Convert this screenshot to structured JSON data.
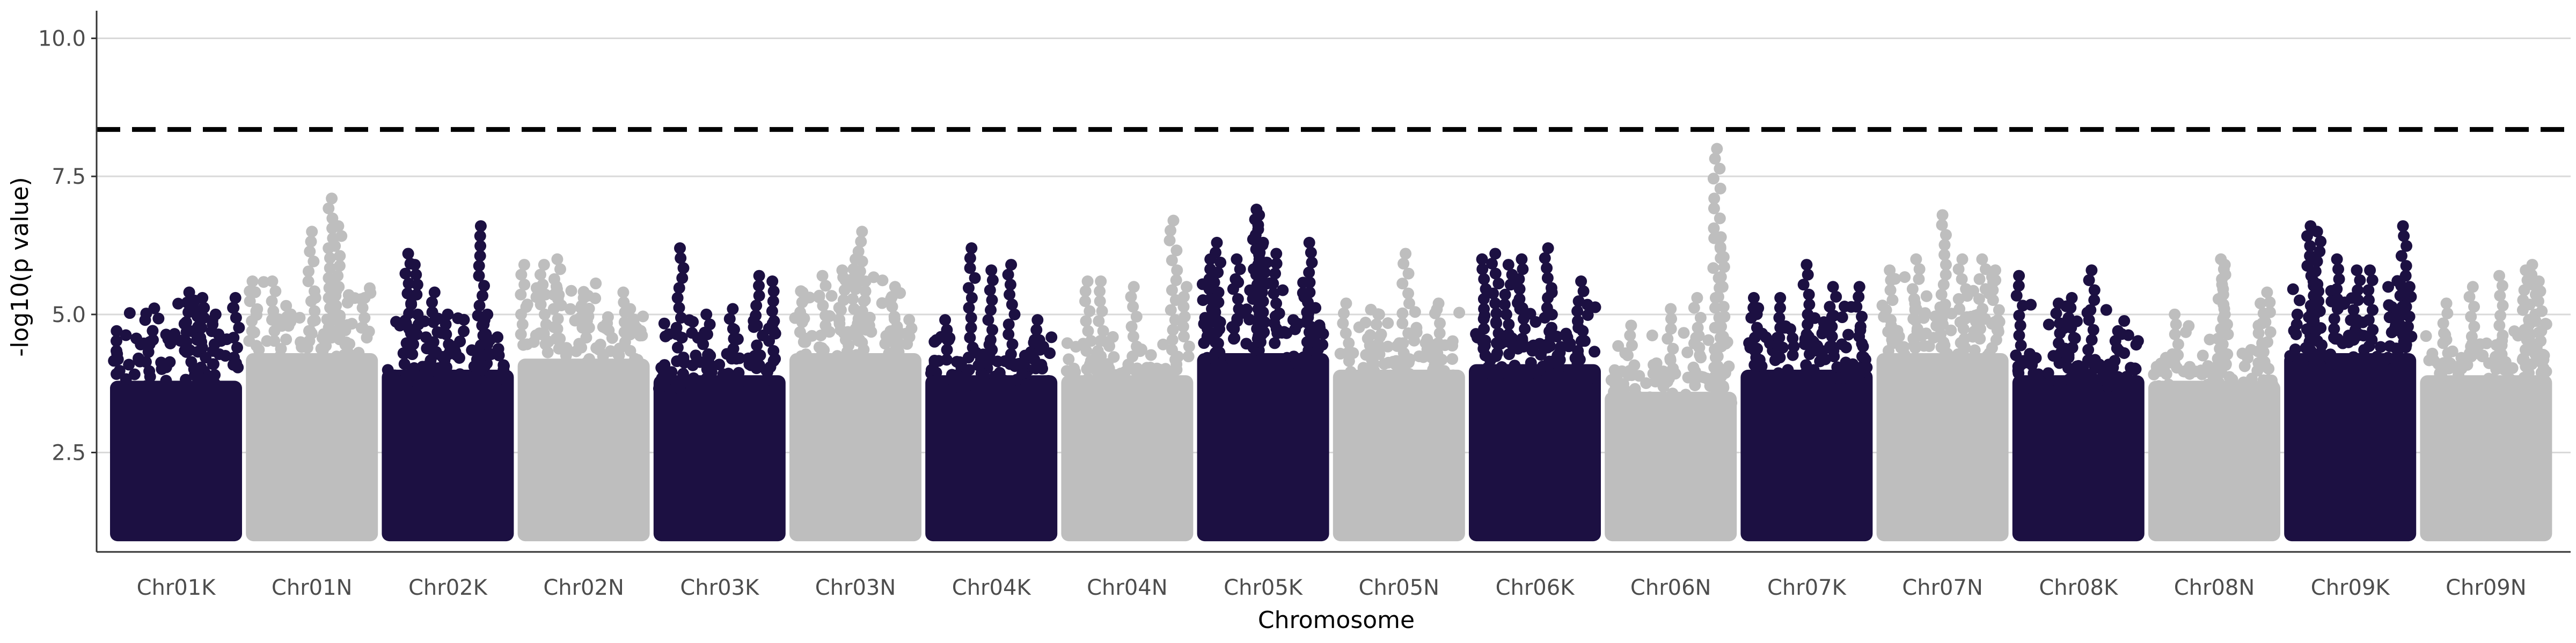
{
  "chart_data": {
    "type": "scatter",
    "title": "",
    "xlabel": "Chromosome",
    "ylabel": "-log10(p value)",
    "ylim": [
      0.7,
      10.5
    ],
    "yticks": [
      "2.5",
      "5.0",
      "7.5",
      "10.0"
    ],
    "ytick_values": [
      2.5,
      5.0,
      7.5,
      10.0
    ],
    "grid": "horizontal major",
    "legend": "none",
    "threshold": 8.35,
    "threshold_style": "dashed",
    "colors": {
      "odd": "#1c1042",
      "even": "#bebebe",
      "threshold": "#000000",
      "grid": "#d9d9d9"
    },
    "chromosomes": [
      "Chr01K",
      "Chr01N",
      "Chr02K",
      "Chr02N",
      "Chr03K",
      "Chr03N",
      "Chr04K",
      "Chr04N",
      "Chr05K",
      "Chr05N",
      "Chr06K",
      "Chr06N",
      "Chr07K",
      "Chr07N",
      "Chr08K",
      "Chr08N",
      "Chr09K",
      "Chr09N"
    ],
    "series": [
      {
        "chromosome": "Chr01K",
        "band_top": 3.8,
        "spread": [
          4.7,
          5.3
        ],
        "points": [
          [
            0.05,
            4.7
          ],
          [
            0.3,
            4.5
          ],
          [
            0.6,
            5.4
          ],
          [
            0.7,
            5.3
          ],
          [
            0.8,
            5.0
          ],
          [
            0.95,
            5.3
          ]
        ]
      },
      {
        "chromosome": "Chr01N",
        "band_top": 4.3,
        "spread": [
          5.0,
          5.6
        ],
        "points": [
          [
            0.05,
            5.6
          ],
          [
            0.2,
            5.6
          ],
          [
            0.5,
            6.5
          ],
          [
            0.65,
            7.1
          ],
          [
            0.7,
            6.6
          ],
          [
            0.9,
            5.3
          ]
        ]
      },
      {
        "chromosome": "Chr02K",
        "band_top": 4.0,
        "spread": [
          4.4,
          5.0
        ],
        "points": [
          [
            0.2,
            6.1
          ],
          [
            0.25,
            5.9
          ],
          [
            0.4,
            5.4
          ],
          [
            0.5,
            5.0
          ],
          [
            0.75,
            6.6
          ],
          [
            0.8,
            5.0
          ]
        ]
      },
      {
        "chromosome": "Chr02N",
        "band_top": 4.2,
        "spread": [
          5.0,
          5.6
        ],
        "points": [
          [
            0.05,
            5.9
          ],
          [
            0.2,
            5.9
          ],
          [
            0.3,
            6.0
          ],
          [
            0.5,
            5.3
          ],
          [
            0.8,
            5.4
          ]
        ]
      },
      {
        "chromosome": "Chr03K",
        "band_top": 3.9,
        "spread": [
          4.3,
          4.9
        ],
        "points": [
          [
            0.2,
            6.2
          ],
          [
            0.4,
            5.0
          ],
          [
            0.6,
            5.1
          ],
          [
            0.8,
            5.7
          ],
          [
            0.9,
            5.6
          ]
        ]
      },
      {
        "chromosome": "Chr03N",
        "band_top": 4.3,
        "spread": [
          5.0,
          5.7
        ],
        "points": [
          [
            0.1,
            5.4
          ],
          [
            0.25,
            5.7
          ],
          [
            0.4,
            5.8
          ],
          [
            0.5,
            6.0
          ],
          [
            0.55,
            6.5
          ],
          [
            0.8,
            5.5
          ]
        ]
      },
      {
        "chromosome": "Chr04K",
        "band_top": 3.9,
        "spread": [
          4.2,
          4.6
        ],
        "points": [
          [
            0.15,
            4.9
          ],
          [
            0.35,
            6.2
          ],
          [
            0.5,
            5.8
          ],
          [
            0.65,
            5.9
          ],
          [
            0.85,
            4.9
          ]
        ]
      },
      {
        "chromosome": "Chr04N",
        "band_top": 3.9,
        "spread": [
          4.1,
          4.6
        ],
        "points": [
          [
            0.2,
            5.6
          ],
          [
            0.3,
            5.6
          ],
          [
            0.55,
            5.5
          ],
          [
            0.85,
            6.7
          ],
          [
            0.95,
            5.5
          ]
        ]
      },
      {
        "chromosome": "Chr05K",
        "band_top": 4.3,
        "spread": [
          5.0,
          5.6
        ],
        "points": [
          [
            0.1,
            6.0
          ],
          [
            0.15,
            6.3
          ],
          [
            0.3,
            6.0
          ],
          [
            0.45,
            6.9
          ],
          [
            0.47,
            6.8
          ],
          [
            0.5,
            6.3
          ],
          [
            0.6,
            6.1
          ],
          [
            0.85,
            6.3
          ]
        ]
      },
      {
        "chromosome": "Chr05N",
        "band_top": 4.0,
        "spread": [
          4.5,
          5.1
        ],
        "points": [
          [
            0.1,
            5.2
          ],
          [
            0.35,
            5.0
          ],
          [
            0.55,
            6.1
          ],
          [
            0.8,
            5.2
          ]
        ]
      },
      {
        "chromosome": "Chr06K",
        "band_top": 4.1,
        "spread": [
          4.6,
          5.6
        ],
        "points": [
          [
            0.1,
            6.0
          ],
          [
            0.2,
            6.1
          ],
          [
            0.3,
            5.9
          ],
          [
            0.4,
            6.0
          ],
          [
            0.6,
            6.2
          ],
          [
            0.85,
            5.6
          ]
        ]
      },
      {
        "chromosome": "Chr06N",
        "band_top": 3.6,
        "spread": [
          4.0,
          4.7
        ],
        "points": [
          [
            0.2,
            4.8
          ],
          [
            0.5,
            5.1
          ],
          [
            0.7,
            5.3
          ],
          [
            0.85,
            8.0
          ],
          [
            0.88,
            6.4
          ]
        ]
      },
      {
        "chromosome": "Chr07K",
        "band_top": 4.0,
        "spread": [
          4.6,
          5.2
        ],
        "points": [
          [
            0.1,
            5.3
          ],
          [
            0.3,
            5.3
          ],
          [
            0.5,
            5.9
          ],
          [
            0.7,
            5.5
          ],
          [
            0.9,
            5.5
          ]
        ]
      },
      {
        "chromosome": "Chr07N",
        "band_top": 4.3,
        "spread": [
          5.0,
          5.7
        ],
        "points": [
          [
            0.1,
            5.8
          ],
          [
            0.3,
            6.0
          ],
          [
            0.5,
            6.8
          ],
          [
            0.65,
            6.0
          ],
          [
            0.8,
            6.0
          ],
          [
            0.9,
            5.8
          ]
        ]
      },
      {
        "chromosome": "Chr08K",
        "band_top": 3.9,
        "spread": [
          4.3,
          5.2
        ],
        "points": [
          [
            0.05,
            5.7
          ],
          [
            0.35,
            5.2
          ],
          [
            0.45,
            5.3
          ],
          [
            0.6,
            5.8
          ],
          [
            0.8,
            4.7
          ]
        ]
      },
      {
        "chromosome": "Chr08N",
        "band_top": 3.8,
        "spread": [
          4.1,
          4.8
        ],
        "points": [
          [
            0.2,
            5.0
          ],
          [
            0.55,
            6.0
          ],
          [
            0.58,
            5.9
          ],
          [
            0.85,
            5.2
          ],
          [
            0.9,
            5.4
          ]
        ]
      },
      {
        "chromosome": "Chr09K",
        "band_top": 4.3,
        "spread": [
          5.0,
          5.7
        ],
        "points": [
          [
            0.1,
            5.0
          ],
          [
            0.2,
            6.6
          ],
          [
            0.25,
            6.5
          ],
          [
            0.4,
            6.0
          ],
          [
            0.55,
            5.8
          ],
          [
            0.65,
            5.8
          ],
          [
            0.9,
            6.6
          ],
          [
            0.95,
            5.5
          ]
        ]
      },
      {
        "chromosome": "Chr09N",
        "band_top": 3.9,
        "spread": [
          4.3,
          4.9
        ],
        "points": [
          [
            0.2,
            5.2
          ],
          [
            0.4,
            5.5
          ],
          [
            0.6,
            5.7
          ],
          [
            0.8,
            5.8
          ],
          [
            0.85,
            5.9
          ],
          [
            0.9,
            5.6
          ]
        ]
      }
    ]
  }
}
